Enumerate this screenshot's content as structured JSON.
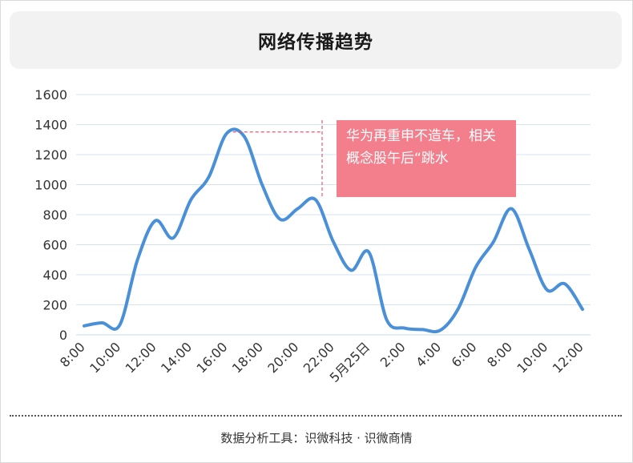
{
  "header": {
    "title": "网络传播趋势"
  },
  "annotation": {
    "text": "华为再重申不造车，相关概念股午后“跳水"
  },
  "footer": {
    "text": "数据分析工具：识微科技 · 识微商情"
  },
  "colors": {
    "line": "#4a90d9",
    "grid": "#d5e3f0",
    "annotation_bg": "#f47f8c",
    "leader": "#e05a73"
  },
  "chart_data": {
    "type": "line",
    "title": "网络传播趋势",
    "xlabel": "",
    "ylabel": "",
    "ylim": [
      0,
      1600
    ],
    "yticks": [
      0,
      200,
      400,
      600,
      800,
      1000,
      1200,
      1400,
      1600
    ],
    "grid": true,
    "categories": [
      "8:00",
      "10:00",
      "12:00",
      "14:00",
      "16:00",
      "18:00",
      "20:00",
      "22:00",
      "5月25日",
      "2:00",
      "4:00",
      "6:00",
      "8:00",
      "10:00",
      "12:00"
    ],
    "x": [
      0,
      0.5,
      1,
      1.5,
      2,
      2.5,
      3,
      3.5,
      4,
      4.5,
      5,
      5.5,
      6,
      6.5,
      7,
      7.5,
      8,
      8.5,
      9,
      9.5,
      10,
      10.5,
      11,
      11.5,
      12,
      12.5,
      13,
      13.5,
      14
    ],
    "series": [
      {
        "values": [
          60,
          80,
          65,
          500,
          760,
          645,
          900,
          1050,
          1340,
          1320,
          1000,
          770,
          840,
          900,
          620,
          430,
          550,
          100,
          45,
          35,
          30,
          170,
          450,
          620,
          840,
          570,
          300,
          340,
          170
        ]
      }
    ]
  }
}
